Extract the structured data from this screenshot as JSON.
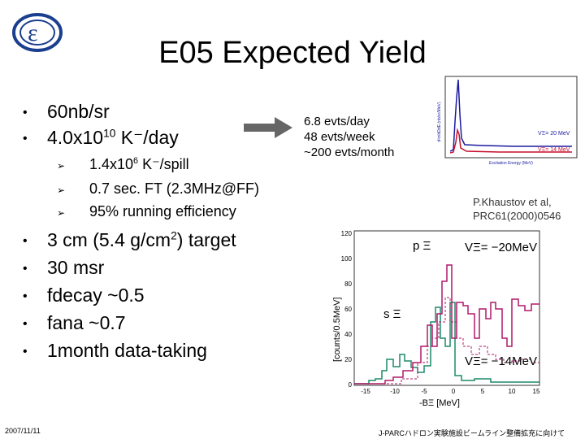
{
  "title": "E05 Expected Yield",
  "bullets_top": [
    {
      "text": "60nb/sr"
    },
    {
      "text": "4.0x10",
      "sup": "10",
      "rest": " K⁻/day"
    }
  ],
  "sub_bullets": [
    {
      "text": "1.4x10",
      "sup": "6",
      "rest": " K⁻/spill"
    },
    {
      "text": "0.7 sec. FT (2.3MHz@FF)",
      "sup": "",
      "rest": ""
    },
    {
      "text": "95% running efficiency",
      "sup": "",
      "rest": ""
    }
  ],
  "bullets_bottom": [
    {
      "text": "3 cm (5.4 g/cm",
      "sup": "2",
      "rest": ") target"
    },
    {
      "text": "30 msr",
      "sup": "",
      "rest": ""
    },
    {
      "text": "fdecay  ~0.5",
      "sup": "",
      "rest": ""
    },
    {
      "text": "fana ~0.7",
      "sup": "",
      "rest": ""
    },
    {
      "text": "1month data-taking",
      "sup": "",
      "rest": ""
    }
  ],
  "bullet_symbol": "•",
  "sub_bullet_symbol": "➢",
  "rates": [
    "6.8 evts/day",
    "48 evts/week",
    "~200 evts/month"
  ],
  "citation": [
    "P.Khaustov et al,",
    "PRC61(2000)0546"
  ],
  "inset_plot": {
    "ylabel": "d²σ/dΩdE (nb/sr/MeV)",
    "xlabel": "Excitation Energy (MeV)",
    "legend": [
      "VΞ= 20 MeV",
      "VΞ= 14 MeV"
    ],
    "colors": [
      "#1a1aa0",
      "#c8102e"
    ]
  },
  "main_plot": {
    "ylabel": "[counts/0.5MeV]",
    "xlabel": "-BΞ [MeV]",
    "yticks": [
      "120",
      "100",
      "80",
      "60",
      "40",
      "20",
      "0"
    ],
    "xticks": [
      "-15",
      "-10",
      "-5",
      "0",
      "5",
      "10",
      "15"
    ],
    "label_p": "p Ξ",
    "label_s": "s Ξ",
    "label_v20": "VΞ= −20MeV",
    "label_v14": "VΞ= −14MeV",
    "series_colors": {
      "green": "#1e8a6a",
      "magenta": "#b0186a"
    }
  },
  "date": "2007/11/11",
  "footer": "J-PARCハドロン実験施設ビームライン整備拡充に向けて",
  "colors": {
    "logo": "#1b3f8f",
    "arrow": "#666666"
  }
}
